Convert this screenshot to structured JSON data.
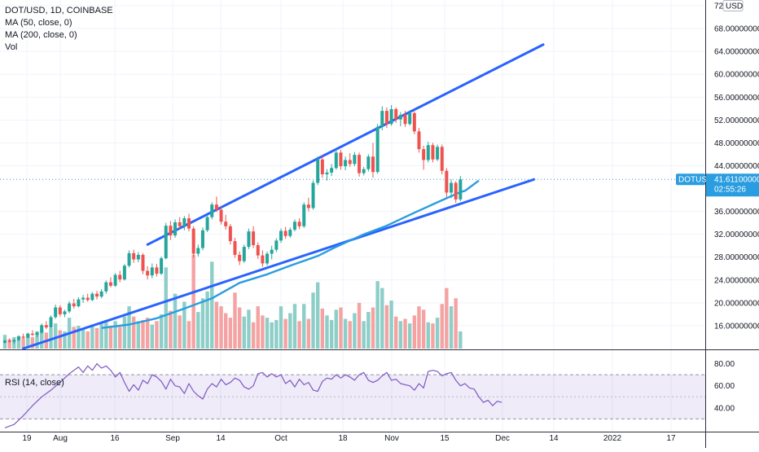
{
  "legend": {
    "symbol": "DOT/USD, 1D, COINBASE",
    "ma50": "MA (50, close, 0)",
    "ma200": "MA (200, close, 0)",
    "vol": "Vol",
    "rsi": "RSI (14, close)"
  },
  "price_axis": {
    "currency": "USD",
    "ticks": [
      "72.00000000",
      "68.00000000",
      "64.00000000",
      "60.00000000",
      "56.00000000",
      "52.00000000",
      "48.00000000",
      "44.00000000",
      "36.00000000",
      "32.00000000",
      "28.00000000",
      "24.00000000",
      "20.00000000",
      "16.00000000"
    ]
  },
  "last_price": {
    "symbol": "DOTUSD",
    "price": "41.61100000",
    "countdown": "02:55:26"
  },
  "rsi_axis": {
    "ticks": [
      "80.00",
      "60.00",
      "40.00"
    ]
  },
  "date_axis": {
    "labels": [
      "19",
      "Aug",
      "16",
      "Sep",
      "14",
      "Oct",
      "18",
      "Nov",
      "15",
      "Dec",
      "14",
      "2022",
      "17"
    ]
  },
  "colors": {
    "up": "#26a69a",
    "down": "#ef5350",
    "ma50": "#2a9de0",
    "ma200": "#2f62d3",
    "trendline": "#2962ff",
    "rsi": "#7e57c2",
    "rsi_band": "#7e57c2",
    "vol_up": "#8ecec8",
    "vol_down": "#f4a3a2",
    "last_price_bg": "#2a9de0"
  },
  "chart_data": {
    "type": "candlestick",
    "price_range": [
      12,
      73
    ],
    "rsi_range": [
      20,
      90
    ],
    "rsi_band": [
      30,
      70
    ],
    "candles_start": "2021-07-15",
    "candles": [
      [
        13.0,
        13.6,
        12.9,
        13.4
      ],
      [
        13.4,
        13.8,
        13.0,
        13.2
      ],
      [
        13.2,
        13.7,
        12.8,
        13.5
      ],
      [
        13.5,
        14.3,
        13.3,
        14.1
      ],
      [
        14.1,
        14.6,
        13.7,
        13.9
      ],
      [
        13.9,
        14.8,
        13.8,
        14.6
      ],
      [
        14.6,
        15.2,
        14.2,
        14.4
      ],
      [
        14.4,
        15.0,
        14.0,
        14.8
      ],
      [
        14.8,
        16.4,
        14.6,
        16.1
      ],
      [
        16.1,
        16.8,
        15.4,
        15.7
      ],
      [
        15.7,
        17.8,
        15.5,
        17.5
      ],
      [
        17.5,
        19.7,
        17.2,
        19.2
      ],
      [
        19.2,
        19.6,
        17.6,
        18.0
      ],
      [
        18.0,
        18.8,
        17.5,
        18.5
      ],
      [
        18.5,
        20.3,
        18.2,
        19.9
      ],
      [
        19.9,
        20.7,
        19.0,
        19.4
      ],
      [
        19.4,
        21.0,
        19.2,
        20.6
      ],
      [
        20.6,
        21.4,
        20.0,
        20.9
      ],
      [
        20.9,
        21.6,
        20.2,
        20.5
      ],
      [
        20.5,
        21.9,
        20.3,
        21.6
      ],
      [
        21.6,
        22.1,
        20.6,
        21.1
      ],
      [
        21.1,
        22.4,
        20.8,
        22.0
      ],
      [
        22.0,
        23.9,
        21.6,
        23.6
      ],
      [
        23.6,
        24.5,
        22.7,
        23.0
      ],
      [
        23.0,
        25.2,
        22.8,
        24.9
      ],
      [
        24.9,
        25.6,
        23.6,
        24.1
      ],
      [
        24.1,
        26.8,
        23.9,
        26.5
      ],
      [
        26.5,
        29.2,
        26.2,
        28.7
      ],
      [
        28.7,
        29.3,
        27.0,
        27.6
      ],
      [
        27.6,
        28.9,
        27.1,
        28.4
      ],
      [
        28.4,
        28.7,
        25.0,
        25.6
      ],
      [
        25.6,
        26.4,
        24.1,
        24.8
      ],
      [
        24.8,
        26.9,
        24.3,
        26.2
      ],
      [
        26.2,
        26.8,
        24.6,
        25.1
      ],
      [
        25.1,
        28.1,
        24.9,
        27.8
      ],
      [
        27.8,
        34.0,
        27.6,
        33.5
      ],
      [
        33.5,
        34.3,
        31.0,
        31.8
      ],
      [
        31.8,
        34.6,
        31.4,
        34.1
      ],
      [
        34.1,
        35.0,
        32.9,
        33.4
      ],
      [
        33.4,
        35.2,
        32.7,
        34.8
      ],
      [
        34.8,
        35.6,
        32.5,
        33.0
      ],
      [
        33.0,
        33.4,
        27.9,
        28.6
      ],
      [
        28.6,
        30.2,
        28.1,
        29.6
      ],
      [
        29.6,
        33.2,
        29.2,
        32.7
      ],
      [
        32.7,
        35.4,
        32.4,
        35.0
      ],
      [
        35.0,
        37.6,
        34.6,
        37.2
      ],
      [
        37.2,
        38.6,
        35.9,
        36.3
      ],
      [
        36.3,
        36.9,
        33.7,
        34.2
      ],
      [
        34.2,
        35.4,
        32.8,
        33.4
      ],
      [
        33.4,
        33.8,
        30.2,
        30.8
      ],
      [
        30.8,
        31.4,
        27.9,
        28.4
      ],
      [
        28.4,
        29.0,
        26.6,
        27.3
      ],
      [
        27.3,
        30.2,
        27.0,
        29.8
      ],
      [
        29.8,
        33.0,
        29.4,
        32.5
      ],
      [
        32.5,
        33.4,
        29.6,
        30.1
      ],
      [
        30.1,
        30.6,
        27.7,
        28.3
      ],
      [
        28.3,
        29.2,
        26.3,
        26.9
      ],
      [
        26.9,
        29.0,
        26.5,
        28.6
      ],
      [
        28.6,
        30.0,
        27.6,
        29.3
      ],
      [
        29.3,
        31.3,
        28.9,
        30.9
      ],
      [
        30.9,
        33.0,
        30.5,
        32.6
      ],
      [
        32.6,
        33.3,
        31.2,
        31.7
      ],
      [
        31.7,
        33.2,
        31.4,
        32.8
      ],
      [
        32.8,
        34.6,
        32.5,
        34.2
      ],
      [
        34.2,
        34.8,
        32.9,
        33.4
      ],
      [
        33.4,
        37.6,
        33.1,
        37.2
      ],
      [
        37.2,
        38.4,
        36.0,
        36.6
      ],
      [
        36.6,
        41.4,
        36.3,
        41.0
      ],
      [
        41.0,
        45.6,
        40.6,
        45.1
      ],
      [
        45.1,
        45.9,
        41.9,
        42.5
      ],
      [
        42.5,
        43.4,
        41.4,
        42.8
      ],
      [
        42.8,
        44.3,
        42.2,
        43.6
      ],
      [
        43.6,
        46.9,
        43.3,
        46.3
      ],
      [
        46.3,
        46.8,
        43.3,
        43.9
      ],
      [
        43.9,
        45.6,
        43.2,
        45.0
      ],
      [
        45.0,
        46.2,
        43.8,
        44.3
      ],
      [
        44.3,
        46.4,
        43.9,
        45.9
      ],
      [
        45.9,
        46.3,
        42.1,
        42.7
      ],
      [
        42.7,
        43.8,
        42.3,
        43.4
      ],
      [
        43.4,
        46.0,
        43.0,
        45.6
      ],
      [
        45.6,
        48.0,
        41.9,
        42.9
      ],
      [
        42.9,
        51.3,
        42.6,
        50.8
      ],
      [
        50.8,
        54.4,
        50.2,
        53.6
      ],
      [
        53.6,
        54.2,
        50.6,
        51.3
      ],
      [
        51.3,
        54.6,
        51.0,
        53.9
      ],
      [
        53.9,
        54.2,
        51.5,
        52.1
      ],
      [
        52.1,
        53.4,
        50.9,
        52.9
      ],
      [
        52.9,
        53.6,
        50.8,
        51.3
      ],
      [
        51.3,
        53.7,
        51.0,
        53.2
      ],
      [
        53.2,
        53.5,
        49.5,
        50.0
      ],
      [
        50.0,
        50.6,
        46.3,
        46.9
      ],
      [
        46.9,
        47.5,
        43.3,
        45.0
      ],
      [
        45.0,
        48.2,
        44.6,
        47.6
      ],
      [
        47.6,
        48.0,
        44.6,
        45.1
      ],
      [
        45.1,
        47.7,
        44.8,
        47.3
      ],
      [
        47.3,
        47.7,
        42.5,
        43.1
      ],
      [
        43.1,
        43.6,
        38.5,
        39.3
      ],
      [
        39.3,
        41.6,
        38.3,
        41.0
      ],
      [
        41.0,
        41.3,
        37.5,
        38.1
      ],
      [
        38.1,
        42.2,
        37.8,
        41.6
      ]
    ],
    "volume": [
      [
        "up",
        14.4
      ],
      [
        "down",
        13.6
      ],
      [
        "up",
        14.0
      ],
      [
        "up",
        14.2
      ],
      [
        "down",
        13.8
      ],
      [
        "up",
        14.6
      ],
      [
        "down",
        14.0
      ],
      [
        "up",
        15.0
      ],
      [
        "up",
        15.2
      ],
      [
        "down",
        14.8
      ],
      [
        "up",
        15.6
      ],
      [
        "up",
        16.4
      ],
      [
        "down",
        15.2
      ],
      [
        "up",
        15.0
      ],
      [
        "up",
        17.4
      ],
      [
        "down",
        15.8
      ],
      [
        "up",
        16.0
      ],
      [
        "up",
        15.4
      ],
      [
        "down",
        15.0
      ],
      [
        "up",
        16.2
      ],
      [
        "down",
        15.6
      ],
      [
        "up",
        16.6
      ],
      [
        "up",
        17.0
      ],
      [
        "down",
        16.0
      ],
      [
        "up",
        16.8
      ],
      [
        "down",
        15.8
      ],
      [
        "up",
        17.6
      ],
      [
        "up",
        19.4
      ],
      [
        "down",
        17.6
      ],
      [
        "up",
        16.8
      ],
      [
        "down",
        17.0
      ],
      [
        "down",
        17.4
      ],
      [
        "up",
        16.2
      ],
      [
        "down",
        16.8
      ],
      [
        "up",
        18.0
      ],
      [
        "up",
        26.2
      ],
      [
        "down",
        18.6
      ],
      [
        "up",
        21.6
      ],
      [
        "down",
        17.8
      ],
      [
        "up",
        20.2
      ],
      [
        "down",
        16.8
      ],
      [
        "down",
        28.4
      ],
      [
        "up",
        18.4
      ],
      [
        "up",
        20.8
      ],
      [
        "up",
        22.0
      ],
      [
        "up",
        27.2
      ],
      [
        "down",
        20.2
      ],
      [
        "down",
        19.4
      ],
      [
        "down",
        18.2
      ],
      [
        "down",
        17.4
      ],
      [
        "down",
        21.8
      ],
      [
        "down",
        19.2
      ],
      [
        "up",
        17.6
      ],
      [
        "up",
        18.8
      ],
      [
        "down",
        16.6
      ],
      [
        "down",
        19.4
      ],
      [
        "down",
        17.8
      ],
      [
        "up",
        17.4
      ],
      [
        "up",
        16.6
      ],
      [
        "up",
        17.0
      ],
      [
        "up",
        19.4
      ],
      [
        "down",
        17.2
      ],
      [
        "up",
        18.2
      ],
      [
        "up",
        19.8
      ],
      [
        "down",
        16.8
      ],
      [
        "up",
        19.8
      ],
      [
        "down",
        17.2
      ],
      [
        "up",
        21.8
      ],
      [
        "up",
        23.6
      ],
      [
        "down",
        19.0
      ],
      [
        "up",
        17.8
      ],
      [
        "up",
        17.0
      ],
      [
        "up",
        18.8
      ],
      [
        "down",
        19.2
      ],
      [
        "up",
        17.2
      ],
      [
        "down",
        16.8
      ],
      [
        "up",
        18.2
      ],
      [
        "down",
        20.0
      ],
      [
        "up",
        16.8
      ],
      [
        "up",
        18.4
      ],
      [
        "down",
        19.2
      ],
      [
        "up",
        23.8
      ],
      [
        "up",
        22.6
      ],
      [
        "down",
        19.6
      ],
      [
        "up",
        20.4
      ],
      [
        "down",
        17.6
      ],
      [
        "up",
        16.8
      ],
      [
        "down",
        17.2
      ],
      [
        "up",
        16.4
      ],
      [
        "down",
        17.8
      ],
      [
        "down",
        19.4
      ],
      [
        "down",
        18.8
      ],
      [
        "up",
        16.6
      ],
      [
        "down",
        16.4
      ],
      [
        "up",
        17.4
      ],
      [
        "down",
        19.8
      ],
      [
        "down",
        22.6
      ],
      [
        "up",
        19.4
      ],
      [
        "down",
        20.8
      ],
      [
        "up",
        15.0
      ]
    ],
    "ma50": [
      [
        21,
        15.6
      ],
      [
        27,
        16.2
      ],
      [
        33,
        17.3
      ],
      [
        39,
        19.0
      ],
      [
        45,
        20.8
      ],
      [
        51,
        23.5
      ],
      [
        57,
        25.0
      ],
      [
        62,
        26.5
      ],
      [
        68,
        28.2
      ],
      [
        72,
        29.8
      ],
      [
        78,
        32.0
      ],
      [
        83,
        33.5
      ],
      [
        88,
        35.4
      ],
      [
        94,
        37.6
      ],
      [
        99,
        39.4
      ],
      [
        100,
        39.6
      ],
      [
        101,
        40.2
      ],
      [
        103,
        41.4
      ]
    ],
    "ma200": [],
    "trendlines": [
      {
        "p1": [
          4,
          12.0
        ],
        "p2": [
          115,
          41.6
        ]
      },
      {
        "p1": [
          31,
          30.2
        ],
        "p2": [
          117,
          65.2
        ]
      }
    ],
    "rsi": [
      [
        0,
        22
      ],
      [
        4,
        25
      ],
      [
        8,
        33
      ],
      [
        12,
        42
      ],
      [
        16,
        50
      ],
      [
        20,
        56
      ],
      [
        24,
        63
      ],
      [
        28,
        71
      ],
      [
        32,
        77
      ],
      [
        34,
        72
      ],
      [
        36,
        78
      ],
      [
        38,
        74
      ],
      [
        40,
        80
      ],
      [
        42,
        76
      ],
      [
        44,
        78
      ],
      [
        46,
        74
      ],
      [
        48,
        68
      ],
      [
        50,
        72
      ],
      [
        52,
        63
      ],
      [
        54,
        55
      ],
      [
        56,
        61
      ],
      [
        58,
        56
      ],
      [
        60,
        65
      ],
      [
        62,
        62
      ],
      [
        64,
        70
      ],
      [
        66,
        68
      ],
      [
        68,
        64
      ],
      [
        70,
        57
      ],
      [
        72,
        66
      ],
      [
        74,
        60
      ],
      [
        76,
        59
      ],
      [
        78,
        53
      ],
      [
        80,
        62
      ],
      [
        82,
        55
      ],
      [
        84,
        51
      ],
      [
        86,
        48
      ],
      [
        88,
        57
      ],
      [
        90,
        62
      ],
      [
        92,
        59
      ],
      [
        94,
        66
      ],
      [
        96,
        61
      ],
      [
        98,
        63
      ],
      [
        100,
        67
      ],
      [
        102,
        65
      ],
      [
        104,
        59
      ],
      [
        106,
        57
      ],
      [
        108,
        60
      ],
      [
        110,
        71
      ],
      [
        112,
        72
      ],
      [
        114,
        68
      ],
      [
        116,
        71
      ],
      [
        118,
        68
      ],
      [
        120,
        70
      ],
      [
        122,
        62
      ],
      [
        124,
        65
      ],
      [
        126,
        59
      ],
      [
        128,
        66
      ],
      [
        130,
        61
      ],
      [
        132,
        63
      ],
      [
        134,
        56
      ],
      [
        136,
        55
      ],
      [
        138,
        64
      ],
      [
        140,
        67
      ],
      [
        142,
        66
      ],
      [
        144,
        70
      ],
      [
        146,
        67
      ],
      [
        148,
        70
      ],
      [
        150,
        68
      ],
      [
        152,
        65
      ],
      [
        154,
        70
      ],
      [
        156,
        72
      ],
      [
        158,
        65
      ],
      [
        160,
        63
      ],
      [
        162,
        65
      ],
      [
        164,
        69
      ],
      [
        166,
        72
      ],
      [
        168,
        65
      ],
      [
        170,
        66
      ],
      [
        172,
        62
      ],
      [
        174,
        61
      ],
      [
        176,
        60
      ],
      [
        178,
        56
      ],
      [
        180,
        62
      ],
      [
        182,
        58
      ],
      [
        184,
        73
      ],
      [
        186,
        74
      ],
      [
        188,
        73
      ],
      [
        190,
        69
      ],
      [
        192,
        71
      ],
      [
        194,
        72
      ],
      [
        196,
        65
      ],
      [
        198,
        60
      ],
      [
        200,
        62
      ],
      [
        202,
        58
      ],
      [
        204,
        57
      ],
      [
        206,
        50
      ],
      [
        208,
        45
      ],
      [
        210,
        47
      ],
      [
        212,
        42
      ],
      [
        214,
        46
      ],
      [
        216,
        45
      ]
    ]
  }
}
